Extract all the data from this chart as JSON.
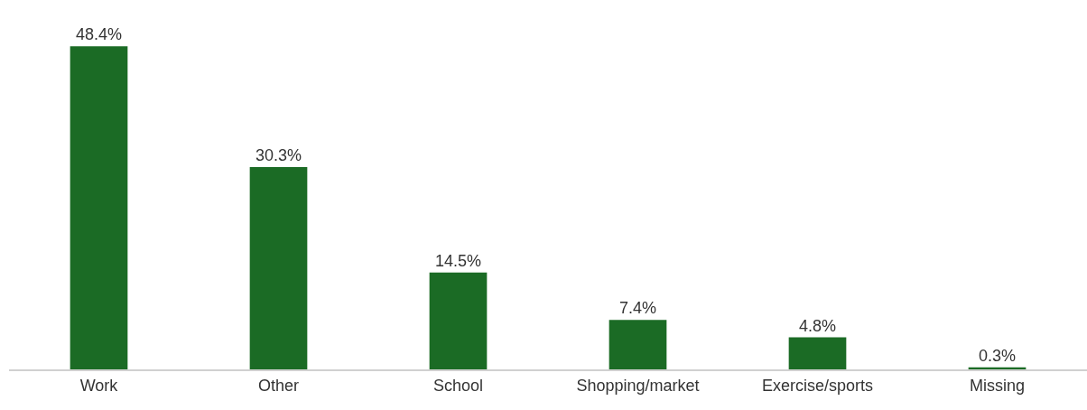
{
  "chart_data": {
    "type": "bar",
    "categories": [
      "Work",
      "Other",
      "School",
      "Shopping/market",
      "Exercise/sports",
      "Missing"
    ],
    "values": [
      48.4,
      30.3,
      14.5,
      7.4,
      4.8,
      0.3
    ],
    "value_labels": [
      "48.4%",
      "30.3%",
      "14.5%",
      "7.4%",
      "4.8%",
      "0.3%"
    ],
    "color": "#1b6b25"
  }
}
